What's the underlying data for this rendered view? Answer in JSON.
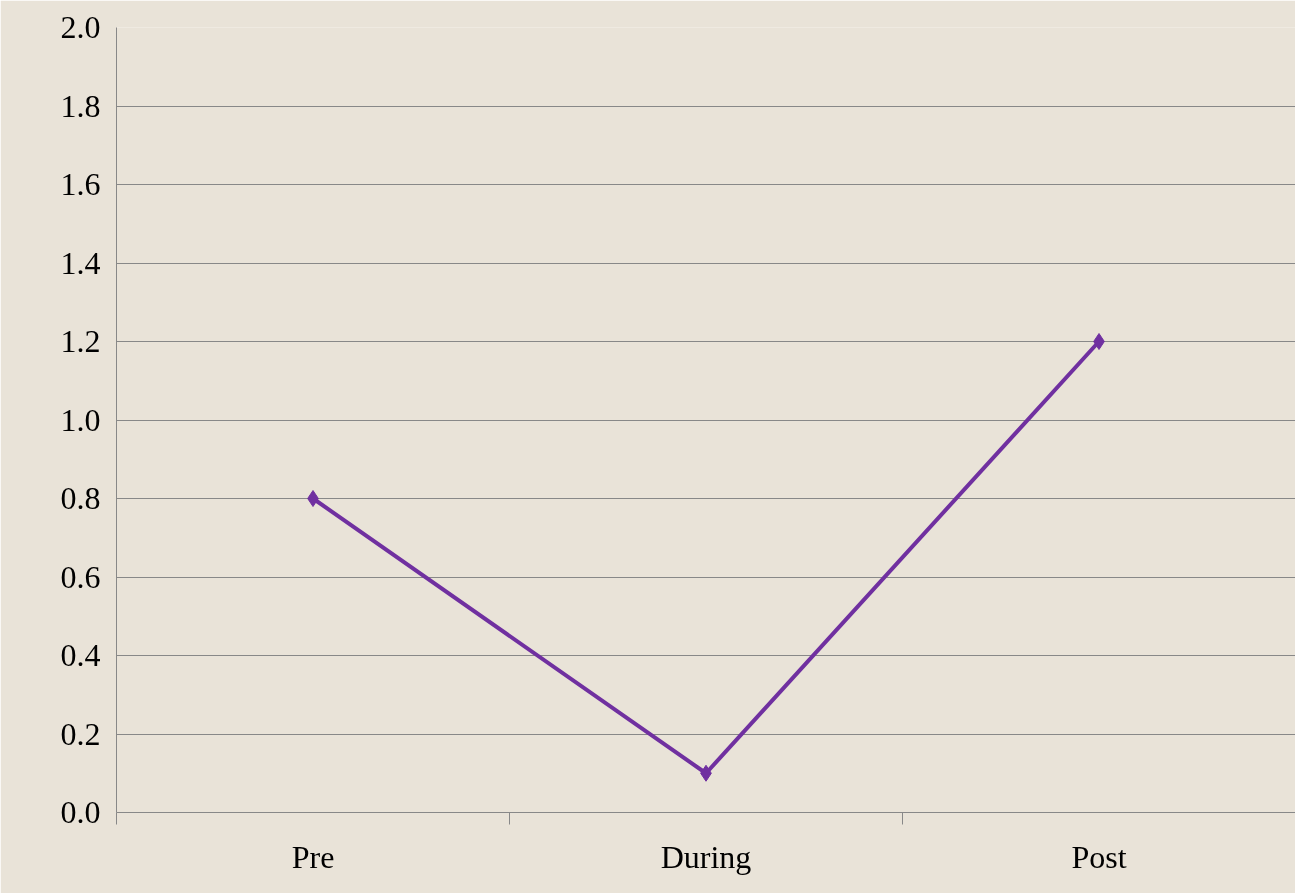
{
  "chart_data": {
    "type": "line",
    "categories": [
      "Pre",
      "During",
      "Post"
    ],
    "series": [
      {
        "color": "#7030a0",
        "values": [
          0.8,
          0.1,
          1.2
        ]
      }
    ],
    "ylim": [
      0,
      2
    ],
    "yticks": [
      {
        "value": 0,
        "label": "0.0"
      },
      {
        "value": 0.2,
        "label": "0.2"
      },
      {
        "value": 0.4,
        "label": "0.4"
      },
      {
        "value": 0.6,
        "label": "0.6"
      },
      {
        "value": 0.8,
        "label": "0.8"
      },
      {
        "value": 1,
        "label": "1.0"
      },
      {
        "value": 1.2,
        "label": "1.2"
      },
      {
        "value": 1.4,
        "label": "1.4"
      },
      {
        "value": 1.6,
        "label": "1.6"
      },
      {
        "value": 1.8,
        "label": "1.8"
      },
      {
        "value": 2,
        "label": "2.0"
      }
    ],
    "grid": "y",
    "marker": "diamond",
    "line_style": "solid"
  }
}
